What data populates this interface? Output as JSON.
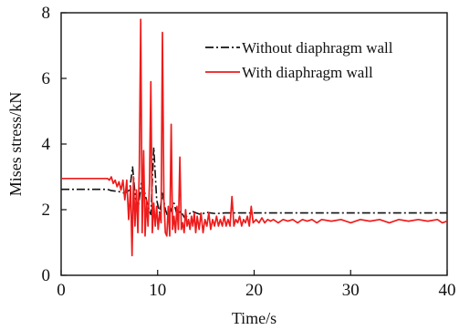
{
  "chart_data": {
    "type": "line",
    "xlabel": "Time/s",
    "ylabel": "Mises stress/kN",
    "xlim": [
      0,
      40
    ],
    "ylim": [
      0,
      8
    ],
    "x_ticks": [
      0,
      10,
      20,
      30,
      40
    ],
    "y_ticks": [
      0,
      2,
      4,
      6,
      8
    ],
    "grid": false,
    "legend_position": "top-right",
    "series": [
      {
        "name": "Without diaphragm wall",
        "color": "#111111",
        "line_style": "dash-dot",
        "x": [
          0,
          4.8,
          5.2,
          6.0,
          6.6,
          7.1,
          7.4,
          7.7,
          8.0,
          8.3,
          8.6,
          9.0,
          9.3,
          9.6,
          9.9,
          10.2,
          10.5,
          10.8,
          11.1,
          11.4,
          11.7,
          12.0,
          12.4,
          12.8,
          13.2,
          13.6,
          14.0,
          14.5,
          15.0,
          16.0,
          17.0,
          18.0,
          20.0,
          25.0,
          30.0,
          35.0,
          40.0
        ],
        "y": [
          2.62,
          2.62,
          2.58,
          2.55,
          2.5,
          2.6,
          3.3,
          2.35,
          2.1,
          2.8,
          2.6,
          2.1,
          1.85,
          3.9,
          2.3,
          1.9,
          2.5,
          2.0,
          1.75,
          2.0,
          2.2,
          1.85,
          1.95,
          1.75,
          1.85,
          1.95,
          1.9,
          1.85,
          1.92,
          1.88,
          1.9,
          1.9,
          1.9,
          1.9,
          1.9,
          1.9,
          1.9
        ]
      },
      {
        "name": "With diaphragm wall",
        "color": "#ee1c1c",
        "line_style": "solid",
        "x": [
          0,
          4.8,
          5.0,
          5.2,
          5.4,
          5.6,
          5.8,
          6.0,
          6.2,
          6.4,
          6.6,
          6.8,
          7.0,
          7.2,
          7.35,
          7.5,
          7.65,
          7.8,
          7.95,
          8.1,
          8.25,
          8.4,
          8.55,
          8.7,
          8.85,
          9.0,
          9.15,
          9.3,
          9.45,
          9.6,
          9.75,
          9.9,
          10.05,
          10.2,
          10.35,
          10.5,
          10.65,
          10.8,
          10.95,
          11.1,
          11.25,
          11.4,
          11.55,
          11.7,
          11.85,
          12.0,
          12.15,
          12.3,
          12.45,
          12.6,
          12.75,
          12.9,
          13.05,
          13.2,
          13.35,
          13.5,
          13.65,
          13.8,
          13.95,
          14.1,
          14.3,
          14.5,
          14.7,
          14.9,
          15.1,
          15.3,
          15.5,
          15.7,
          15.9,
          16.1,
          16.3,
          16.5,
          16.7,
          16.9,
          17.1,
          17.3,
          17.5,
          17.7,
          17.9,
          18.1,
          18.3,
          18.5,
          18.7,
          18.9,
          19.1,
          19.3,
          19.5,
          19.7,
          19.9,
          20.2,
          20.5,
          20.8,
          21.1,
          21.4,
          21.7,
          22.0,
          22.5,
          23.0,
          23.5,
          24.0,
          24.5,
          25.0,
          25.5,
          26.0,
          26.5,
          27.0,
          28.0,
          29.0,
          30.0,
          31.0,
          32.0,
          33.0,
          34.0,
          35.0,
          36.0,
          37.0,
          38.0,
          39.0,
          39.5,
          40.0
        ],
        "y": [
          2.95,
          2.95,
          2.9,
          3.0,
          2.8,
          2.9,
          2.7,
          2.85,
          2.6,
          2.9,
          2.3,
          2.9,
          1.7,
          2.7,
          0.6,
          3.0,
          1.5,
          2.6,
          1.3,
          3.3,
          7.8,
          1.3,
          3.8,
          1.2,
          2.3,
          1.5,
          2.8,
          5.9,
          1.3,
          2.2,
          1.5,
          2.1,
          1.4,
          1.9,
          1.6,
          7.4,
          2.3,
          1.3,
          1.2,
          2.1,
          1.2,
          4.6,
          1.4,
          1.8,
          1.3,
          2.1,
          1.4,
          3.6,
          1.4,
          1.6,
          1.3,
          2.0,
          1.5,
          1.7,
          1.4,
          1.8,
          1.5,
          1.9,
          1.3,
          1.8,
          1.4,
          1.9,
          1.3,
          1.7,
          1.5,
          1.9,
          1.4,
          1.7,
          1.5,
          1.8,
          1.5,
          1.7,
          1.5,
          1.8,
          1.5,
          1.7,
          1.5,
          2.4,
          1.5,
          1.7,
          1.6,
          1.8,
          1.5,
          1.7,
          1.6,
          1.8,
          1.5,
          2.1,
          1.6,
          1.7,
          1.6,
          1.75,
          1.6,
          1.7,
          1.65,
          1.7,
          1.6,
          1.7,
          1.65,
          1.7,
          1.6,
          1.7,
          1.65,
          1.7,
          1.6,
          1.7,
          1.65,
          1.7,
          1.6,
          1.7,
          1.65,
          1.7,
          1.6,
          1.7,
          1.65,
          1.7,
          1.65,
          1.7,
          1.6,
          1.65
        ]
      }
    ]
  }
}
